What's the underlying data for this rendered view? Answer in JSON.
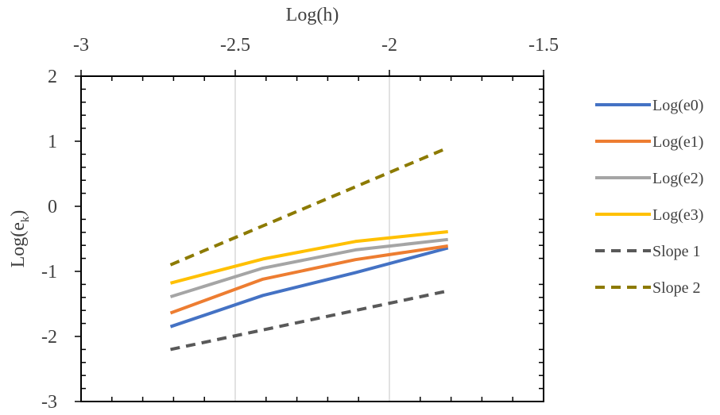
{
  "chart_data": {
    "type": "line",
    "xlabel": "Log(h)",
    "ylabel": "Log(e",
    "ylabel_subscript": "k",
    "ylabel_close": ")",
    "xlim": [
      -3,
      -1.5
    ],
    "ylim": [
      -3,
      2
    ],
    "x_axis_position": "top",
    "x_ticks": [
      -3,
      -2.5,
      -2,
      -1.5
    ],
    "x_tick_labels": [
      "-3",
      "-2.5",
      "-2",
      "-1.5"
    ],
    "y_ticks": [
      -3,
      -2,
      -1,
      0,
      1,
      2
    ],
    "y_tick_labels": [
      "-3",
      "-2",
      "-1",
      "0",
      "1",
      "2"
    ],
    "grid": "vertical",
    "legend_position": "right",
    "series": [
      {
        "name": "Log(e0)",
        "color": "#4472c4",
        "dash": "solid",
        "x": [
          -2.71,
          -2.41,
          -2.11,
          -1.81
        ],
        "y": [
          -1.85,
          -1.37,
          -1.02,
          -0.64
        ]
      },
      {
        "name": "Log(e1)",
        "color": "#ed7d31",
        "dash": "solid",
        "x": [
          -2.71,
          -2.41,
          -2.11,
          -1.81
        ],
        "y": [
          -1.64,
          -1.12,
          -0.82,
          -0.61
        ]
      },
      {
        "name": "Log(e2)",
        "color": "#a5a5a5",
        "dash": "solid",
        "x": [
          -2.71,
          -2.41,
          -2.11,
          -1.81
        ],
        "y": [
          -1.39,
          -0.95,
          -0.67,
          -0.51
        ]
      },
      {
        "name": "Log(e3)",
        "color": "#ffc000",
        "dash": "solid",
        "x": [
          -2.71,
          -2.41,
          -2.11,
          -1.81
        ],
        "y": [
          -1.18,
          -0.81,
          -0.54,
          -0.39
        ]
      },
      {
        "name": "Slope 1",
        "color": "#595959",
        "dash": "dashed",
        "x": [
          -2.71,
          -1.81
        ],
        "y": [
          -2.2,
          -1.3
        ]
      },
      {
        "name": "Slope 2",
        "color": "#8c7a00",
        "dash": "dashed",
        "x": [
          -2.71,
          -1.81
        ],
        "y": [
          -0.9,
          0.9
        ]
      }
    ]
  }
}
